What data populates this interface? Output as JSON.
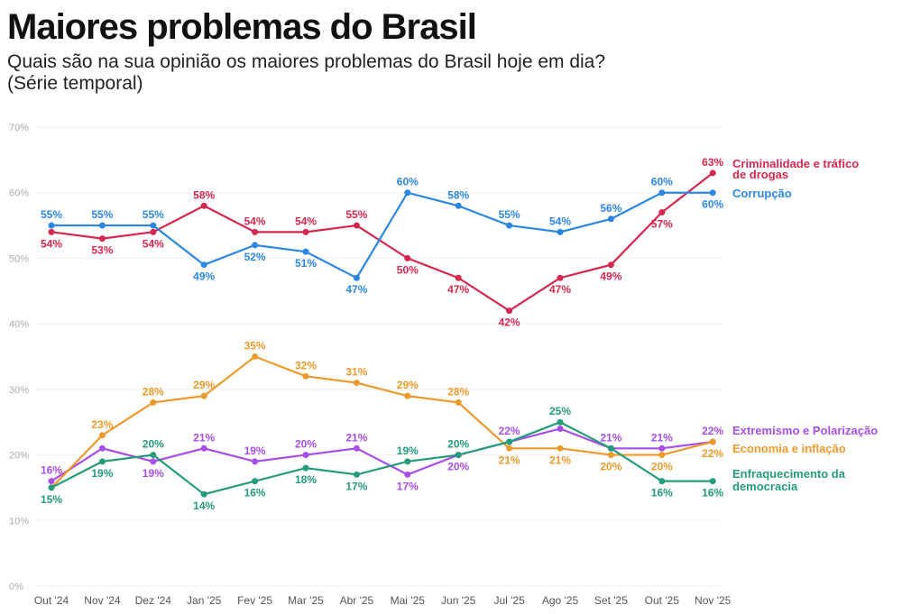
{
  "title": "Maiores problemas do Brasil",
  "subtitle": "Quais são na sua opinião os maiores problemas do Brasil hoje em dia?",
  "subtitle2": "(Série temporal)",
  "chart_data": {
    "type": "line",
    "categories": [
      "Out '24",
      "Nov '24",
      "Dez '24",
      "Jan '25",
      "Fev '25",
      "Mar '25",
      "Abr '25",
      "Mai '25",
      "Jun '25",
      "Jul '25",
      "Ago '25",
      "Set '25",
      "Out '25",
      "Nov '25"
    ],
    "ylim": [
      0,
      70
    ],
    "yticks": [
      0,
      10,
      20,
      30,
      40,
      50,
      60,
      70
    ],
    "y_unit": "%",
    "grid": true,
    "legend": "right end labels",
    "series": [
      {
        "name": "Criminalidade e tráfico de drogas",
        "color": "#d6274f",
        "values": [
          54,
          53,
          54,
          58,
          54,
          54,
          55,
          50,
          47,
          42,
          47,
          49,
          57,
          63
        ],
        "labels": [
          true,
          true,
          true,
          true,
          true,
          true,
          true,
          true,
          true,
          true,
          true,
          true,
          true,
          true
        ],
        "pos": [
          "b",
          "b",
          "b",
          "a",
          "a",
          "a",
          "a",
          "b",
          "b",
          "b",
          "b",
          "b",
          "b",
          "a"
        ]
      },
      {
        "name": "Corrupção",
        "color": "#2b87e3",
        "values": [
          55,
          55,
          55,
          49,
          52,
          51,
          47,
          60,
          58,
          55,
          54,
          56,
          60,
          60
        ],
        "labels": [
          true,
          true,
          true,
          true,
          true,
          true,
          true,
          true,
          true,
          true,
          true,
          true,
          true,
          true
        ],
        "pos": [
          "a",
          "a",
          "a",
          "b",
          "b",
          "b",
          "b",
          "a",
          "a",
          "a",
          "a",
          "a",
          "a",
          "b"
        ]
      },
      {
        "name": "Extremismo e Polarização",
        "color": "#a84ee8",
        "values": [
          16,
          21,
          19,
          21,
          19,
          20,
          21,
          17,
          20,
          22,
          24,
          21,
          21,
          22
        ],
        "labels": [
          true,
          false,
          true,
          true,
          true,
          true,
          true,
          true,
          true,
          true,
          false,
          true,
          true,
          true
        ],
        "pos": [
          "a",
          "a",
          "b",
          "a",
          "a",
          "a",
          "a",
          "b",
          "b",
          "a",
          "a",
          "a",
          "a",
          "a"
        ]
      },
      {
        "name": "Economia e inflação",
        "color": "#ec9a2c",
        "values": [
          15,
          23,
          28,
          29,
          35,
          32,
          31,
          29,
          28,
          21,
          21,
          20,
          20,
          22
        ],
        "labels": [
          false,
          true,
          true,
          true,
          true,
          true,
          true,
          true,
          true,
          true,
          true,
          true,
          true,
          true
        ],
        "pos": [
          "a",
          "a",
          "a",
          "a",
          "a",
          "a",
          "a",
          "a",
          "a",
          "b",
          "b",
          "b",
          "b",
          "b"
        ]
      },
      {
        "name": "Enfraquecimento da democracia",
        "color": "#249b7a",
        "values": [
          15,
          19,
          20,
          14,
          16,
          18,
          17,
          19,
          20,
          22,
          25,
          21,
          16,
          16
        ],
        "labels": [
          true,
          true,
          true,
          true,
          true,
          true,
          true,
          true,
          true,
          false,
          true,
          false,
          true,
          true
        ],
        "pos": [
          "b",
          "b",
          "a",
          "b",
          "b",
          "b",
          "b",
          "a",
          "a",
          "a",
          "a",
          "a",
          "b",
          "b"
        ]
      }
    ]
  }
}
